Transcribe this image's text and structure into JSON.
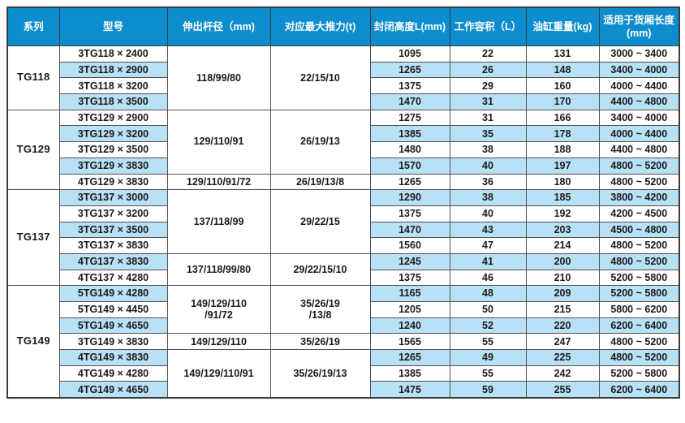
{
  "colors": {
    "header_bg": "#0d8dcd",
    "row_highlight": "#b8e1f6",
    "border": "#4f4f4f",
    "header_text": "#ffffff",
    "body_text": "#1b1b1b"
  },
  "table": {
    "columns": [
      {
        "key": "series",
        "label": "系列"
      },
      {
        "key": "model",
        "label": "型号"
      },
      {
        "key": "rod",
        "label": "伸出杆径（mm)"
      },
      {
        "key": "thrust",
        "label": "对应最大推力(t)"
      },
      {
        "key": "height",
        "label": "封闭高度L(mm)"
      },
      {
        "key": "volume",
        "label": "工作容积（L）"
      },
      {
        "key": "weight",
        "label": "油缸重量(kg)"
      },
      {
        "key": "length",
        "label": "适用于货厢长度\n(mm)"
      }
    ],
    "groups": [
      {
        "series": "TG118",
        "specs": [
          {
            "rod": "118/99/80",
            "thrust": "22/15/10",
            "span": 4
          }
        ],
        "rows": [
          {
            "model": "3TG118 × 2400",
            "height": "1095",
            "volume": "22",
            "weight": "131",
            "length": "3000 ~ 3400"
          },
          {
            "model": "3TG118 × 2900",
            "height": "1265",
            "volume": "26",
            "weight": "148",
            "length": "3400 ~ 4000"
          },
          {
            "model": "3TG118 × 3200",
            "height": "1375",
            "volume": "29",
            "weight": "160",
            "length": "4000 ~ 4400"
          },
          {
            "model": "3TG118 × 3500",
            "height": "1470",
            "volume": "31",
            "weight": "170",
            "length": "4400 ~ 4800"
          }
        ]
      },
      {
        "series": "TG129",
        "specs": [
          {
            "rod": "129/110/91",
            "thrust": "26/19/13",
            "span": 4
          },
          {
            "rod": "129/110/91/72",
            "thrust": "26/19/13/8",
            "span": 1
          }
        ],
        "rows": [
          {
            "model": "3TG129 × 2900",
            "height": "1275",
            "volume": "31",
            "weight": "166",
            "length": "3400 ~ 4000"
          },
          {
            "model": "3TG129 × 3200",
            "height": "1385",
            "volume": "35",
            "weight": "178",
            "length": "4000 ~ 4400"
          },
          {
            "model": "3TG129 × 3500",
            "height": "1480",
            "volume": "38",
            "weight": "188",
            "length": "4400 ~ 4800"
          },
          {
            "model": "3TG129 × 3830",
            "height": "1570",
            "volume": "40",
            "weight": "197",
            "length": "4800 ~ 5200"
          },
          {
            "model": "4TG129 × 3830",
            "height": "1265",
            "volume": "36",
            "weight": "180",
            "length": "4800 ~ 5200"
          }
        ]
      },
      {
        "series": "TG137",
        "specs": [
          {
            "rod": "137/118/99",
            "thrust": "29/22/15",
            "span": 4
          },
          {
            "rod": "137/118/99/80",
            "thrust": "29/22/15/10",
            "span": 2
          }
        ],
        "rows": [
          {
            "model": "3TG137 × 3000",
            "height": "1290",
            "volume": "38",
            "weight": "185",
            "length": "3800 ~ 4200"
          },
          {
            "model": "3TG137 × 3200",
            "height": "1375",
            "volume": "40",
            "weight": "192",
            "length": "4200 ~ 4500"
          },
          {
            "model": "3TG137 × 3500",
            "height": "1470",
            "volume": "43",
            "weight": "203",
            "length": "4500 ~ 4800"
          },
          {
            "model": "3TG137 × 3830",
            "height": "1560",
            "volume": "47",
            "weight": "214",
            "length": "4800 ~ 5200"
          },
          {
            "model": "4TG137 × 3830",
            "height": "1245",
            "volume": "41",
            "weight": "200",
            "length": "4800 ~ 5200"
          },
          {
            "model": "4TG137 × 4280",
            "height": "1375",
            "volume": "46",
            "weight": "210",
            "length": "5200 ~ 5800"
          }
        ]
      },
      {
        "series": "TG149",
        "specs": [
          {
            "rod": "149/129/110\n/91/72",
            "thrust": "35/26/19\n/13/8",
            "span": 3
          },
          {
            "rod": "149/129/110",
            "thrust": "35/26/19",
            "span": 1
          },
          {
            "rod": "149/129/110/91",
            "thrust": "35/26/19/13",
            "span": 3
          }
        ],
        "rows": [
          {
            "model": "5TG149 × 4280",
            "height": "1165",
            "volume": "48",
            "weight": "209",
            "length": "5200 ~ 5800"
          },
          {
            "model": "5TG149 × 4450",
            "height": "1205",
            "volume": "50",
            "weight": "215",
            "length": "5800 ~ 6200"
          },
          {
            "model": "5TG149 × 4650",
            "height": "1240",
            "volume": "52",
            "weight": "220",
            "length": "6200 ~ 6400"
          },
          {
            "model": "3TG149 × 3830",
            "height": "1565",
            "volume": "55",
            "weight": "247",
            "length": "4800 ~ 5200"
          },
          {
            "model": "4TG149 × 3830",
            "height": "1265",
            "volume": "49",
            "weight": "225",
            "length": "4800 ~ 5200"
          },
          {
            "model": "4TG149 × 4280",
            "height": "1385",
            "volume": "55",
            "weight": "242",
            "length": "5200 ~ 5800"
          },
          {
            "model": "4TG149 × 4650",
            "height": "1475",
            "volume": "59",
            "weight": "255",
            "length": "6200 ~ 6400"
          }
        ]
      }
    ]
  }
}
